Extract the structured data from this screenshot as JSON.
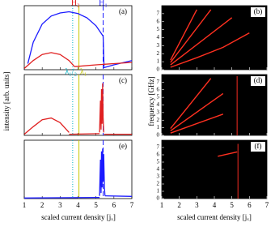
{
  "ylabel_left": "intensity [arb. units]",
  "ylabel_right": "frequency [GHz]",
  "xlabel_left": "scaled current density [jₓ]",
  "xlabel_right": "scaled current density [jₓ]",
  "chart_data": [
    {
      "type": "line",
      "label": "(a)",
      "xlim": [
        1,
        7
      ],
      "xticks": [
        1,
        2,
        3,
        4,
        5,
        6,
        7
      ],
      "ylim": [
        0,
        1.05
      ],
      "background": "#ffffff",
      "vlines": [
        {
          "x": 3.7,
          "color": "#00b4c8",
          "dash": "1,2"
        },
        {
          "x": 4.05,
          "color": "#c8c800",
          "dash": "none"
        },
        {
          "x": 5.4,
          "color": "#1a1aff",
          "dash": "6,3"
        }
      ],
      "annotations": [
        {
          "text": "H₂",
          "x": 3.85,
          "color": "#e02020"
        },
        {
          "text": "H₁",
          "x": 5.4,
          "color": "#1a1aff"
        }
      ],
      "series": [
        {
          "color": "#1a1aff",
          "x": [
            1.2,
            1.5,
            2,
            2.5,
            3,
            3.5,
            4,
            4.5,
            5,
            5.4,
            5.45
          ],
          "values": [
            0.1,
            0.45,
            0.75,
            0.88,
            0.93,
            0.95,
            0.92,
            0.85,
            0.72,
            0.55,
            0.05
          ]
        },
        {
          "color": "#1a1aff",
          "x": [
            5.4,
            6,
            7
          ],
          "values": [
            0.03,
            0.08,
            0.15
          ]
        },
        {
          "color": "#e02020",
          "x": [
            1,
            1.5,
            2,
            2.5,
            3,
            3.5,
            3.8
          ],
          "values": [
            0.02,
            0.15,
            0.25,
            0.28,
            0.25,
            0.15,
            0.05
          ]
        },
        {
          "color": "#e02020",
          "x": [
            3.8,
            5,
            6,
            7
          ],
          "values": [
            0.05,
            0.08,
            0.1,
            0.12
          ]
        }
      ]
    },
    {
      "type": "line",
      "label": "(b)",
      "xlim": [
        1,
        7
      ],
      "xticks": [
        1,
        2,
        3,
        4,
        5,
        6,
        7
      ],
      "ylim": [
        0,
        8
      ],
      "yticks": [
        0,
        1,
        2,
        3,
        4,
        5,
        6,
        7
      ],
      "background": "#000000",
      "series": [
        {
          "color": "#ff3020",
          "x": [
            1.5,
            3,
            4.5,
            6
          ],
          "values": [
            0.3,
            1.5,
            2.8,
            4.6
          ]
        },
        {
          "color": "#ff3020",
          "x": [
            1.5,
            5
          ],
          "values": [
            0.6,
            6.5
          ]
        },
        {
          "color": "#ff3020",
          "x": [
            1.5,
            3.8
          ],
          "values": [
            0.9,
            7.5
          ]
        },
        {
          "color": "#ff3020",
          "x": [
            1.5,
            3
          ],
          "values": [
            1.2,
            7.5
          ]
        }
      ]
    },
    {
      "type": "line",
      "label": "(c)",
      "xlim": [
        1,
        7
      ],
      "xticks": [
        1,
        2,
        3,
        4,
        5,
        6,
        7
      ],
      "ylim": [
        0,
        1.05
      ],
      "background": "#ffffff",
      "vlines": [
        {
          "x": 3.7,
          "color": "#00b4c8",
          "dash": "1,2"
        },
        {
          "x": 4.05,
          "color": "#c8c800",
          "dash": "none"
        },
        {
          "x": 5.4,
          "color": "#1a1aff",
          "dash": "6,3"
        }
      ],
      "annotations": [
        {
          "text": "λ₁/₂",
          "x": 3.6,
          "color": "#00b4c8"
        },
        {
          "text": "λ₁",
          "x": 4.3,
          "color": "#c8c800"
        }
      ],
      "series": [
        {
          "color": "#e02020",
          "x": [
            1,
            1.5,
            2,
            2.5,
            3,
            3.5
          ],
          "values": [
            0.02,
            0.15,
            0.27,
            0.3,
            0.22,
            0.05
          ]
        },
        {
          "color": "#e02020",
          "x": [
            3.5,
            5.2
          ],
          "values": [
            0.02,
            0.03
          ]
        },
        {
          "color": "#e02020",
          "x": [
            5.2,
            5.25,
            5.28,
            5.31,
            5.34,
            5.37,
            5.4,
            5.43
          ],
          "values": [
            0.05,
            0.6,
            0.1,
            0.8,
            0.2,
            0.9,
            0.3,
            0.05
          ]
        },
        {
          "color": "#e02020",
          "x": [
            5.45,
            7
          ],
          "values": [
            0.02,
            0.02
          ]
        }
      ]
    },
    {
      "type": "line",
      "label": "(d)",
      "xlim": [
        1,
        7
      ],
      "xticks": [
        1,
        2,
        3,
        4,
        5,
        6,
        7
      ],
      "ylim": [
        0,
        8
      ],
      "yticks": [
        0,
        1,
        2,
        3,
        4,
        5,
        6,
        7
      ],
      "background": "#000000",
      "series": [
        {
          "color": "#ff3020",
          "x": [
            1.5,
            4.5
          ],
          "values": [
            0.3,
            2.8
          ]
        },
        {
          "color": "#ff3020",
          "x": [
            1.5,
            4.5
          ],
          "values": [
            0.6,
            5.5
          ]
        },
        {
          "color": "#ff3020",
          "x": [
            1.5,
            3.8
          ],
          "values": [
            0.9,
            7.5
          ]
        },
        {
          "color": "#b02018",
          "x": [
            5.3,
            5.3
          ],
          "values": [
            0,
            7.8
          ]
        }
      ]
    },
    {
      "type": "line",
      "label": "(e)",
      "xlim": [
        1,
        7
      ],
      "xticks": [
        1,
        2,
        3,
        4,
        5,
        6,
        7
      ],
      "ylim": [
        0,
        1.05
      ],
      "background": "#ffffff",
      "vlines": [
        {
          "x": 3.7,
          "color": "#00b4c8",
          "dash": "1,2"
        },
        {
          "x": 4.05,
          "color": "#c8c800",
          "dash": "none"
        },
        {
          "x": 5.4,
          "color": "#1a1aff",
          "dash": "6,3"
        }
      ],
      "series": [
        {
          "color": "#1a1aff",
          "x": [
            1,
            5.2
          ],
          "values": [
            0.01,
            0.02
          ]
        },
        {
          "color": "#1a1aff",
          "x": [
            5.2,
            5.25,
            5.28,
            5.31,
            5.34,
            5.37,
            5.4,
            5.43,
            5.47,
            5.5
          ],
          "values": [
            0.05,
            0.7,
            0.1,
            0.85,
            0.2,
            0.9,
            0.3,
            0.8,
            0.2,
            0.05
          ]
        },
        {
          "color": "#1a1aff",
          "x": [
            5.5,
            7
          ],
          "values": [
            0.05,
            0.04
          ]
        }
      ]
    },
    {
      "type": "line",
      "label": "(f)",
      "xlim": [
        1,
        7
      ],
      "xticks": [
        1,
        2,
        3,
        4,
        5,
        6,
        7
      ],
      "ylim": [
        0,
        8
      ],
      "yticks": [
        0,
        1,
        2,
        3,
        4,
        5,
        6,
        7
      ],
      "background": "#000000",
      "series": [
        {
          "color": "#ff3020",
          "x": [
            4.2,
            5.3
          ],
          "values": [
            5.8,
            6.4
          ]
        },
        {
          "color": "#b02018",
          "x": [
            5.35,
            5.35
          ],
          "values": [
            0,
            7.5
          ]
        }
      ]
    }
  ]
}
